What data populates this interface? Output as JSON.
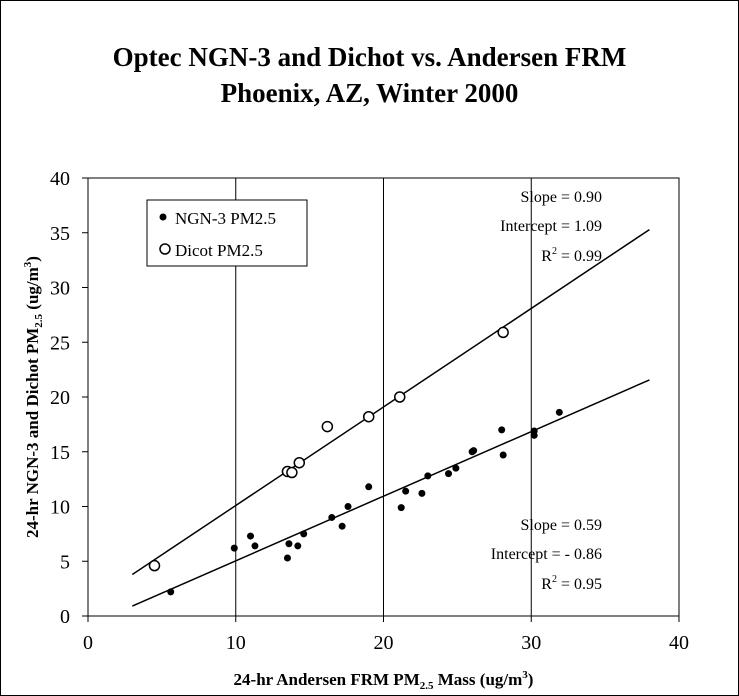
{
  "chart_data": {
    "type": "scatter",
    "title_line1": "Optec NGN-3 and Dichot vs. Andersen FRM",
    "title_line2": "Phoenix, AZ, Winter 2000",
    "xlabel": "24-hr Andersen FRM PM2.5 Mass (ug/m3)",
    "ylabel": "24-hr NGN-3 and Dichot PM2.5 (ug/m3)",
    "xlim": [
      0,
      40
    ],
    "ylim": [
      0,
      40
    ],
    "xticks": [
      "0",
      "10",
      "20",
      "30",
      "40"
    ],
    "yticks": [
      "0",
      "5",
      "10",
      "15",
      "20",
      "25",
      "30",
      "35",
      "40"
    ],
    "grid": "vertical gridlines at x ticks",
    "legend_position": "top-left",
    "series": [
      {
        "name": "NGN-3 PM2.5",
        "marker": "filled-circle",
        "points": [
          [
            5.6,
            2.2
          ],
          [
            9.9,
            6.2
          ],
          [
            11.0,
            7.3
          ],
          [
            11.3,
            6.4
          ],
          [
            13.5,
            5.3
          ],
          [
            13.6,
            6.6
          ],
          [
            14.2,
            6.4
          ],
          [
            14.6,
            7.5
          ],
          [
            16.5,
            9.0
          ],
          [
            17.2,
            8.2
          ],
          [
            17.6,
            10.0
          ],
          [
            19.0,
            11.8
          ],
          [
            21.2,
            9.9
          ],
          [
            21.5,
            11.4
          ],
          [
            22.6,
            11.2
          ],
          [
            23.0,
            12.8
          ],
          [
            24.4,
            13.0
          ],
          [
            24.9,
            13.5
          ],
          [
            26.0,
            15.0
          ],
          [
            26.1,
            15.1
          ],
          [
            28.0,
            17.0
          ],
          [
            28.1,
            14.7
          ],
          [
            30.2,
            16.9
          ],
          [
            30.2,
            16.5
          ],
          [
            31.9,
            18.6
          ]
        ],
        "fit": {
          "slope": 0.59,
          "intercept": -0.86,
          "x_range": [
            3.0,
            38.0
          ]
        },
        "annotation": [
          "Slope = 0.59",
          "Intercept = - 0.86",
          "R",
          "2",
          " = 0.95"
        ]
      },
      {
        "name": "Dicot PM2.5",
        "marker": "open-circle",
        "points": [
          [
            4.5,
            4.6
          ],
          [
            13.5,
            13.2
          ],
          [
            13.8,
            13.1
          ],
          [
            14.3,
            14.0
          ],
          [
            16.2,
            17.3
          ],
          [
            19.0,
            18.2
          ],
          [
            21.1,
            20.0
          ],
          [
            28.1,
            25.9
          ]
        ],
        "fit": {
          "slope": 0.9,
          "intercept": 1.09,
          "x_range": [
            3.0,
            38.0
          ]
        },
        "annotation": [
          "Slope = 0.90",
          "Intercept = 1.09",
          "R",
          "2",
          " = 0.99"
        ]
      }
    ]
  }
}
